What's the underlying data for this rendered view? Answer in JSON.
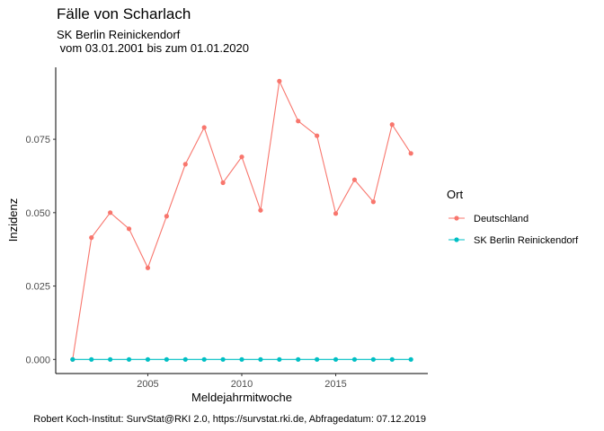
{
  "chart_data": {
    "type": "line",
    "title": "Fälle von Scharlach",
    "subtitle_line1": "SK Berlin Reinickendorf",
    "subtitle_line2": " vom 03.01.2001 bis zum 01.01.2020",
    "xlabel": "Meldejahrmitwoche",
    "ylabel": "Inzidenz",
    "caption": "Robert Koch-Institut: SurvStat@RKI 2.0, https://survstat.rki.de, Abfragedatum: 07.12.2019",
    "legend_title": "Ort",
    "legend_position": "right",
    "grid": false,
    "x": [
      2001,
      2002,
      2003,
      2004,
      2005,
      2006,
      2007,
      2008,
      2009,
      2010,
      2011,
      2012,
      2013,
      2014,
      2015,
      2016,
      2017,
      2018,
      2019
    ],
    "xlim": [
      2000.1,
      2019.9
    ],
    "ylim": [
      -0.0048,
      0.0995
    ],
    "x_ticks": [
      2005,
      2010,
      2015
    ],
    "x_tick_labels": [
      "2005",
      "2010",
      "2015"
    ],
    "y_ticks": [
      0,
      0.025,
      0.05,
      0.075
    ],
    "y_tick_labels": [
      "0.000",
      "0.025",
      "0.050",
      "0.075"
    ],
    "series": [
      {
        "name": "Deutschland",
        "color": "#F8766D",
        "values": [
          0.0,
          0.0415,
          0.05,
          0.0445,
          0.0312,
          0.0488,
          0.0665,
          0.079,
          0.0602,
          0.069,
          0.0508,
          0.0948,
          0.0812,
          0.0762,
          0.0497,
          0.0612,
          0.0537,
          0.08,
          0.0702
        ]
      },
      {
        "name": "SK Berlin Reinickendorf",
        "color": "#00BFC4",
        "values": [
          0,
          0,
          0,
          0,
          0,
          0,
          0,
          0,
          0,
          0,
          0,
          0,
          0,
          0,
          0,
          0,
          0,
          0,
          0
        ]
      }
    ]
  }
}
